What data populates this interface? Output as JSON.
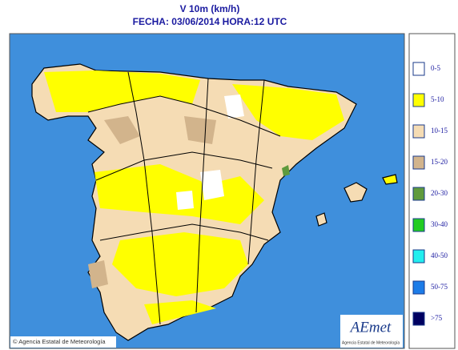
{
  "title": "V 10m (km/h)",
  "subtitle": "FECHA: 03/06/2014 HORA:12 UTC",
  "legend": [
    {
      "label": "0-5",
      "color": "#ffffff"
    },
    {
      "label": "5-10",
      "color": "#ffff00"
    },
    {
      "label": "10-15",
      "color": "#f5dcb4"
    },
    {
      "label": "15-20",
      "color": "#d2b48c"
    },
    {
      "label": "20-30",
      "color": "#5f9a3c"
    },
    {
      "label": "30-40",
      "color": "#22cc22"
    },
    {
      "label": "40-50",
      "color": "#22eeee"
    },
    {
      "label": "50-75",
      "color": "#1c7ce8"
    },
    {
      "label": ">75",
      "color": "#000060"
    }
  ],
  "copyright": "© Agencia Estatal de Meteorología",
  "logo": {
    "name": "AEmet",
    "caption": "Agencia Estatal de Meteorología"
  }
}
